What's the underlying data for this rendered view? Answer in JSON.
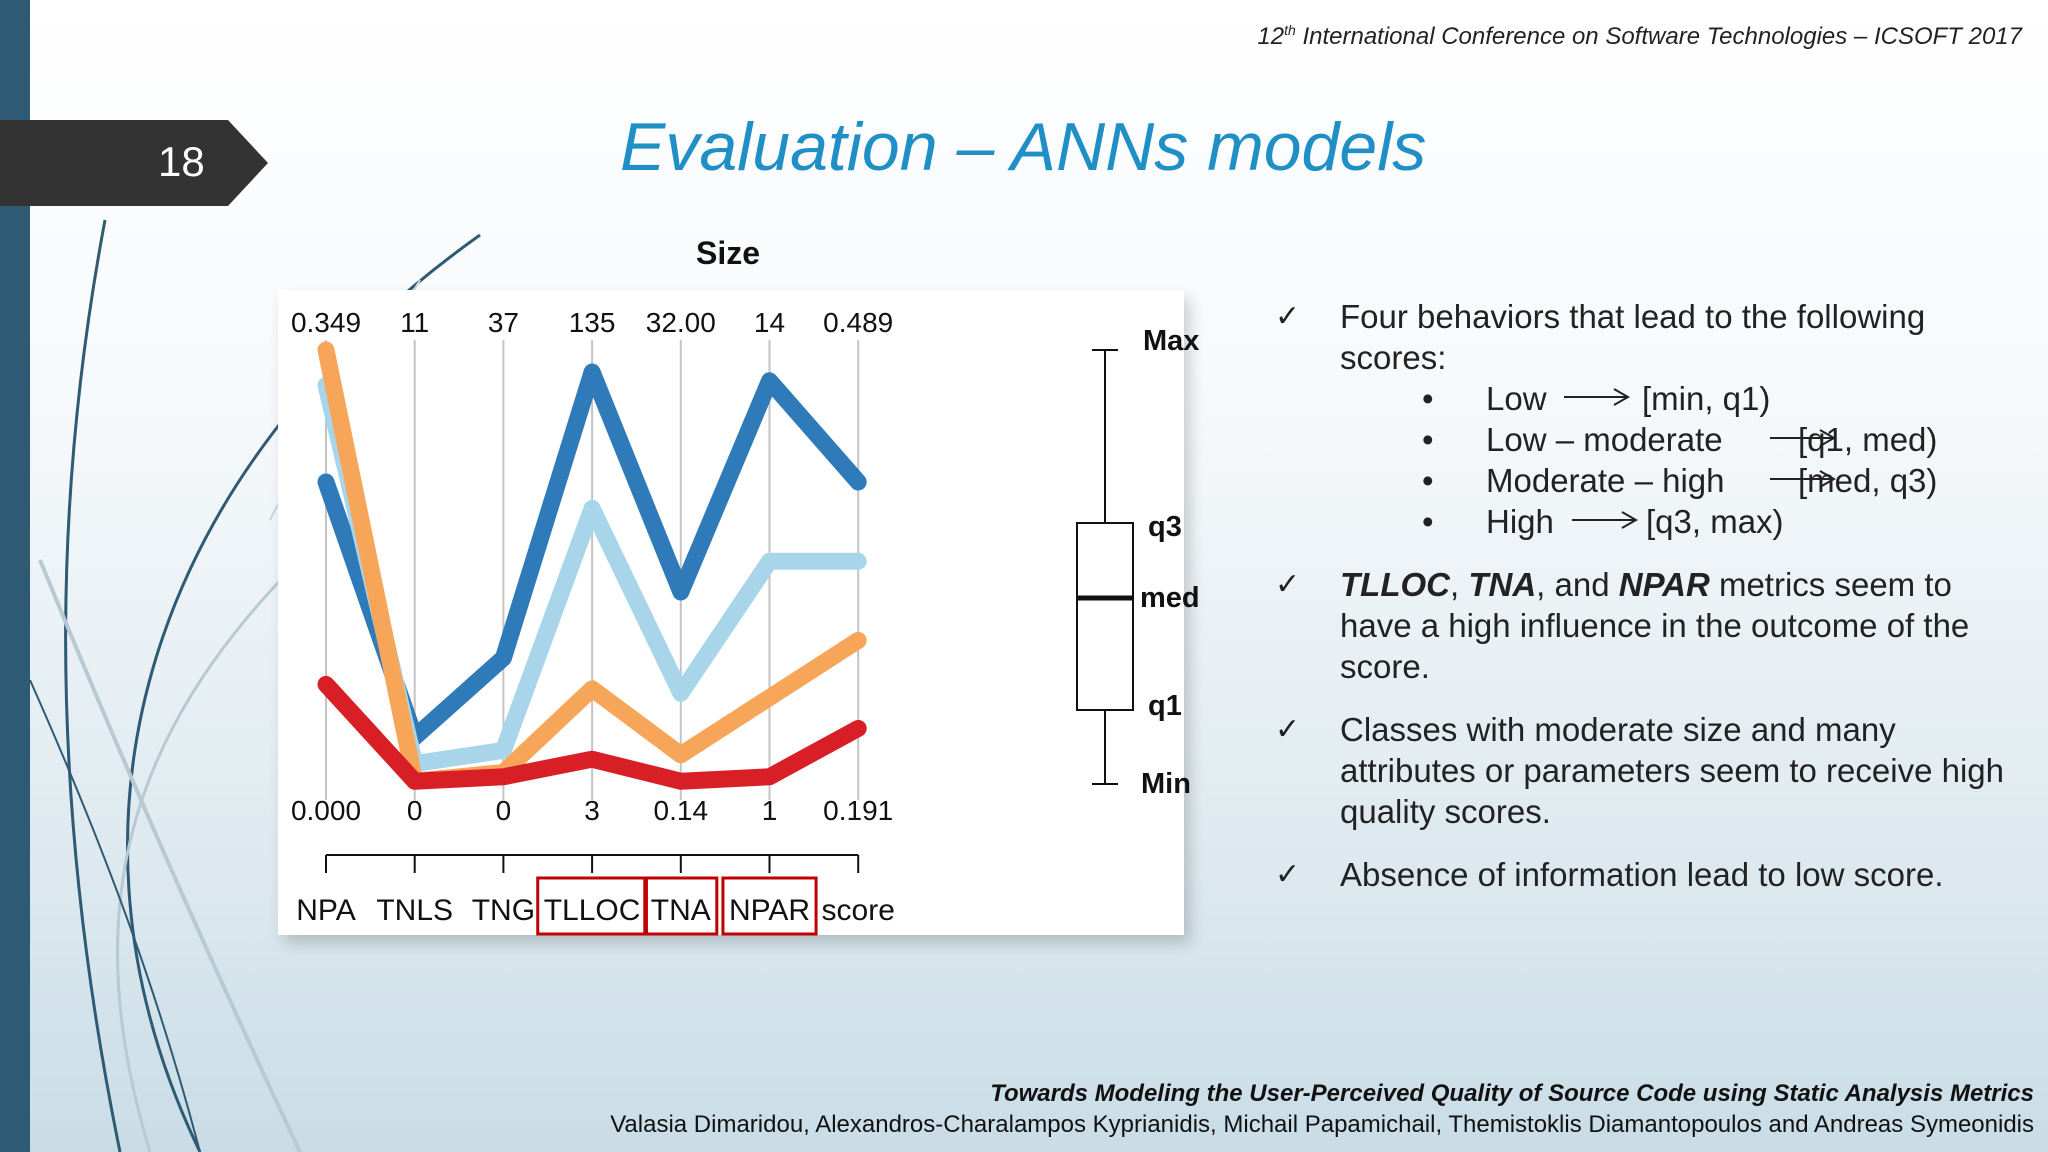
{
  "slide": {
    "number": "18",
    "conference": "International Conference on Software Technologies – ICSOFT 2017",
    "conference_ordinal_num": "12",
    "conference_ordinal_suffix": "th",
    "title": "Evaluation – ANNs models",
    "footer_title": "Towards Modeling the User-Perceived Quality of Source Code using Static Analysis Metrics",
    "footer_authors": "Valasia Dimaridou, Alexandros-Charalampos Kyprianidis, Michail Papamichail, Themistoklis Diamantopoulos and Andreas Symeonidis"
  },
  "bullets": [
    {
      "text": "Four behaviors that lead to the following scores:",
      "sub": [
        {
          "label": "Low",
          "target": "[min, q1)"
        },
        {
          "label": "Low – moderate",
          "target": "[q1, med)"
        },
        {
          "label": "Moderate – high",
          "target": "[med, q3)"
        },
        {
          "label": "High",
          "target": "[q3, max)"
        }
      ]
    },
    {
      "bold1": "TLLOC",
      "sep1": ", ",
      "bold2": "TNA",
      "sep2": ", and ",
      "bold3": "NPAR",
      "rest": " metrics seem to have a high influence in the outcome of the score."
    },
    {
      "text": "Classes with moderate size and many attributes or parameters seem to receive high quality scores."
    },
    {
      "text": "Absence of information lead to low score."
    }
  ],
  "chart_data": {
    "type": "line",
    "title": "Size",
    "x": [
      "NPA",
      "TNLS",
      "TNG",
      "TLLOC",
      "TNA",
      "NPAR",
      "score"
    ],
    "highlighted_axes": [
      "TLLOC",
      "TNA",
      "NPAR"
    ],
    "axis_max_labels": [
      "0.349",
      "11",
      "37",
      "135",
      "32.00",
      "14",
      "0.489"
    ],
    "axis_min_labels": [
      "0.000",
      "0",
      "0",
      "3",
      "0.14",
      "1",
      "0.191"
    ],
    "ylim": [
      0,
      1
    ],
    "series": [
      {
        "color": "#2f7ab8",
        "values": [
          0.7,
          0.12,
          0.3,
          0.95,
          0.45,
          0.93,
          0.7
        ]
      },
      {
        "color": "#a8d5e9",
        "values": [
          0.92,
          0.06,
          0.09,
          0.64,
          0.22,
          0.52,
          0.52
        ]
      },
      {
        "color": "#f7a659",
        "values": [
          1.0,
          0.02,
          0.04,
          0.23,
          0.08,
          0.21,
          0.34
        ]
      },
      {
        "color": "#d91f26",
        "values": [
          0.24,
          0.02,
          0.03,
          0.07,
          0.02,
          0.03,
          0.14
        ]
      }
    ],
    "boxplot_labels": {
      "max": "Max",
      "q3": "q3",
      "med": "med",
      "q1": "q1",
      "min": "Min"
    },
    "grid": false
  }
}
